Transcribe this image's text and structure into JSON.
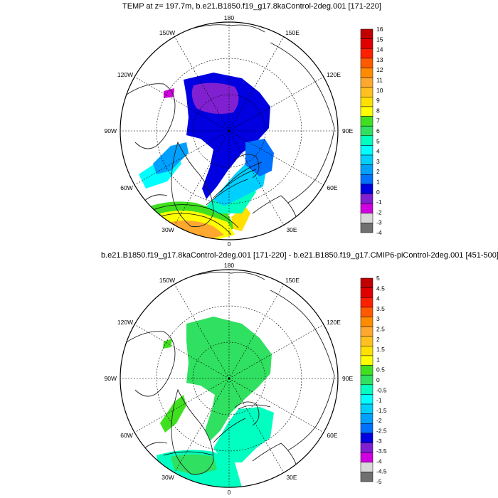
{
  "panel_top": {
    "title": "TEMP at z= 197.7m, b.e21.B1850.f19_g17.8kaControl-2deg.001 [171-220]",
    "lon_labels": {
      "top": "180",
      "upper_left": "150W",
      "upper_right": "150E",
      "left_high": "120W",
      "right_high": "120E",
      "left": "90W",
      "right": "90E",
      "left_low": "60W",
      "right_low": "60E",
      "lower_left": "30W",
      "lower_right": "30E",
      "bottom": "0"
    },
    "colorbar": {
      "labels": [
        "16",
        "15",
        "14",
        "13",
        "12",
        "11",
        "10",
        "9",
        "8",
        "7",
        "6",
        "5",
        "4",
        "3",
        "2",
        "1",
        "0",
        "-1",
        "-2",
        "-3",
        "-4"
      ],
      "colors": [
        "#c00000",
        "#e00000",
        "#ff2000",
        "#ff5a00",
        "#ff8c00",
        "#ffa830",
        "#ffc020",
        "#ffe000",
        "#ffff00",
        "#40e020",
        "#30e060",
        "#00ffc0",
        "#00ffff",
        "#00d0ff",
        "#00a0ff",
        "#0070ff",
        "#0000e0",
        "#8020d0",
        "#d000e0",
        "#d8d8d8",
        "#707070"
      ]
    }
  },
  "panel_bottom": {
    "title": "b.e21.B1850.f19_g17.8kaControl-2deg.001 [171-220] - b.e21.B1850.f19_g17.CMIP6-piControl-2deg.001 [451-500]",
    "lon_labels": {
      "top": "180",
      "upper_left": "150W",
      "upper_right": "150E",
      "left_high": "120W",
      "right_high": "120E",
      "left": "90W",
      "right": "90E",
      "left_low": "60W",
      "right_low": "60E",
      "lower_left": "30W",
      "lower_right": "30E",
      "bottom": "0"
    },
    "colorbar": {
      "labels": [
        "5",
        "4.5",
        "4",
        "3.5",
        "3",
        "2.5",
        "2",
        "1.5",
        "1",
        "0.5",
        "0",
        "-0.5",
        "-1",
        "-1.5",
        "-2",
        "-2.5",
        "-3",
        "-3.5",
        "-4",
        "-4.5",
        "-5"
      ],
      "colors": [
        "#c00000",
        "#e00000",
        "#ff2000",
        "#ff5a00",
        "#ff8c00",
        "#ffa830",
        "#ffc020",
        "#ffe000",
        "#ffff00",
        "#40e020",
        "#30e060",
        "#00ffc0",
        "#00ffff",
        "#00d0ff",
        "#00a0ff",
        "#0070ff",
        "#0000e0",
        "#8020d0",
        "#d000e0",
        "#d8d8d8",
        "#707070"
      ]
    }
  }
}
